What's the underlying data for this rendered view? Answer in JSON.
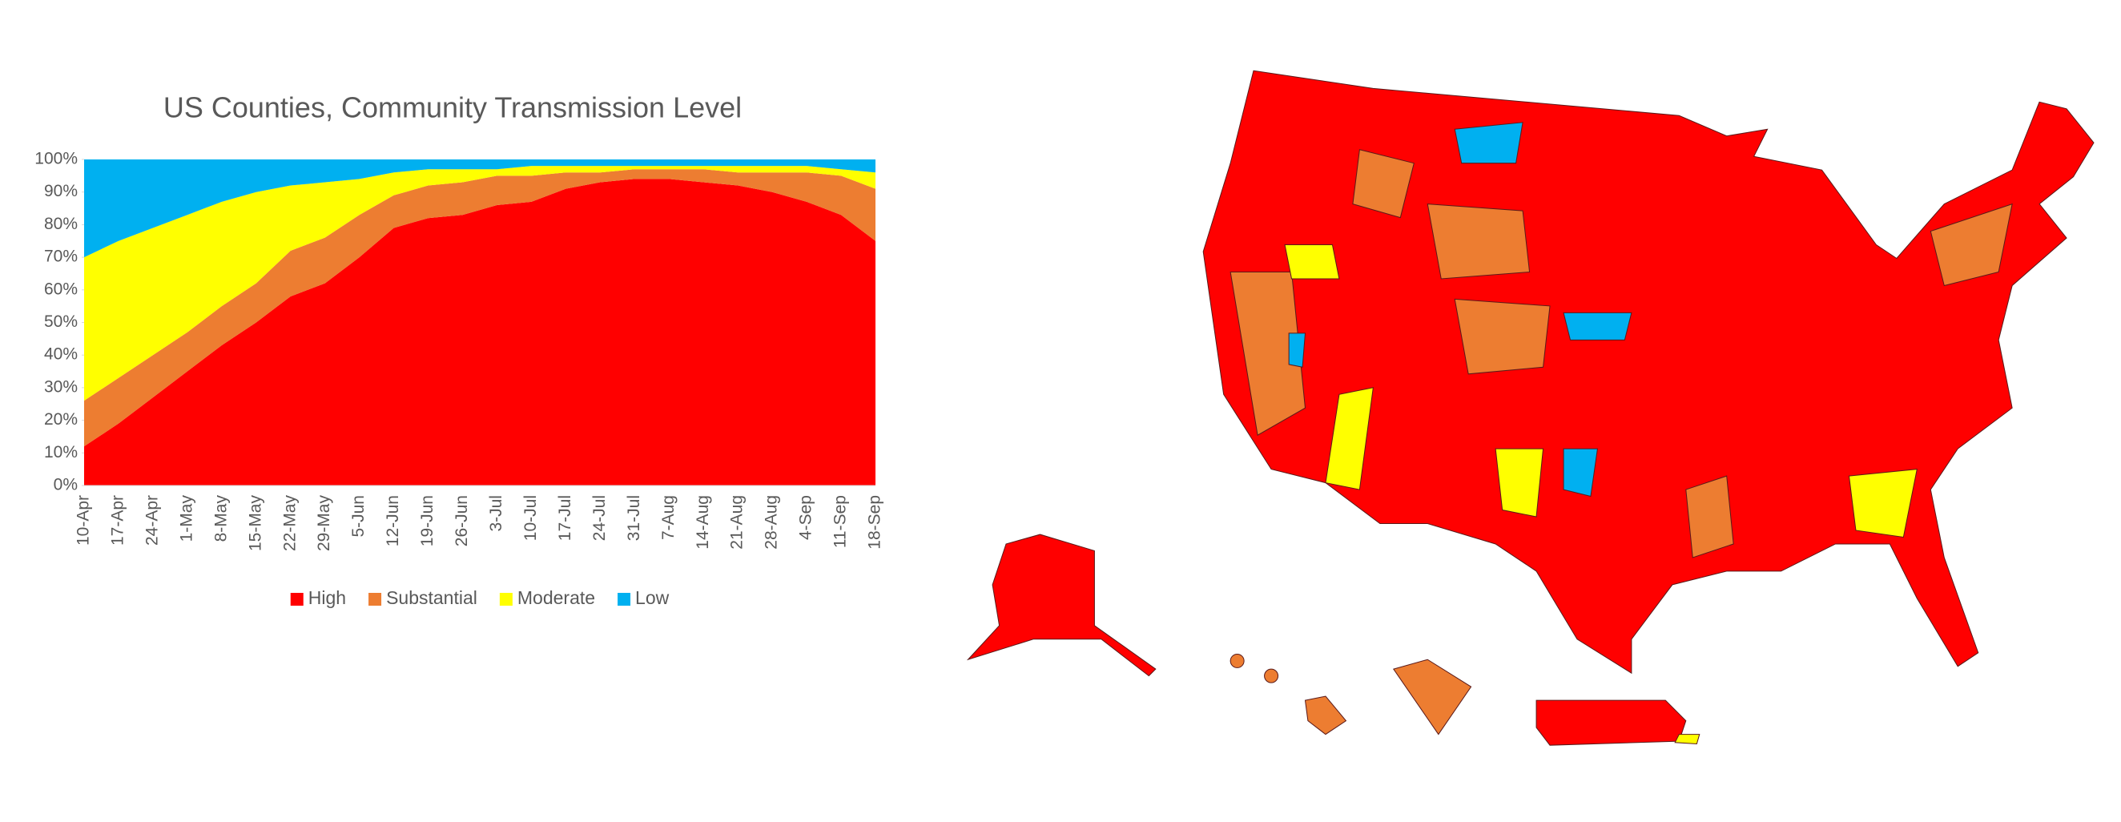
{
  "chart_data": {
    "type": "stacked-area",
    "title": "US Counties, Community Transmission Level",
    "categories": [
      "10-Apr",
      "17-Apr",
      "24-Apr",
      "1-May",
      "8-May",
      "15-May",
      "22-May",
      "29-May",
      "5-Jun",
      "12-Jun",
      "19-Jun",
      "26-Jun",
      "3-Jul",
      "10-Jul",
      "17-Jul",
      "24-Jul",
      "31-Jul",
      "7-Aug",
      "14-Aug",
      "21-Aug",
      "28-Aug",
      "4-Sep",
      "11-Sep",
      "18-Sep"
    ],
    "series": [
      {
        "name": "High",
        "color": "#ff0000",
        "values": [
          12,
          19,
          27,
          35,
          43,
          50,
          58,
          62,
          70,
          79,
          82,
          83,
          86,
          87,
          91,
          93,
          94,
          94,
          93,
          92,
          90,
          87,
          83,
          75
        ]
      },
      {
        "name": "Substantial",
        "color": "#ed7d31",
        "values": [
          14,
          14,
          13,
          12,
          12,
          12,
          14,
          14,
          13,
          10,
          10,
          10,
          9,
          8,
          5,
          3,
          3,
          3,
          4,
          4,
          6,
          9,
          12,
          16
        ]
      },
      {
        "name": "Moderate",
        "color": "#ffff00",
        "values": [
          44,
          42,
          39,
          36,
          32,
          28,
          20,
          17,
          11,
          7,
          5,
          4,
          2,
          3,
          2,
          2,
          1,
          1,
          1,
          2,
          2,
          2,
          2,
          5
        ]
      },
      {
        "name": "Low",
        "color": "#00b0f0",
        "values": [
          30,
          25,
          21,
          17,
          13,
          10,
          8,
          7,
          6,
          4,
          3,
          3,
          3,
          2,
          2,
          2,
          2,
          2,
          2,
          2,
          2,
          2,
          3,
          4
        ]
      }
    ],
    "ylim": [
      0,
      100
    ],
    "yticks": [
      {
        "value": 0,
        "label": "0%"
      },
      {
        "value": 10,
        "label": "10%"
      },
      {
        "value": 20,
        "label": "20%"
      },
      {
        "value": 30,
        "label": "30%"
      },
      {
        "value": 40,
        "label": "40%"
      },
      {
        "value": 50,
        "label": "50%"
      },
      {
        "value": 60,
        "label": "60%"
      },
      {
        "value": 70,
        "label": "70%"
      },
      {
        "value": 80,
        "label": "80%"
      },
      {
        "value": 90,
        "label": "90%"
      },
      {
        "value": 100,
        "label": "100%"
      }
    ],
    "grid": false,
    "legend": "bottom"
  }
}
